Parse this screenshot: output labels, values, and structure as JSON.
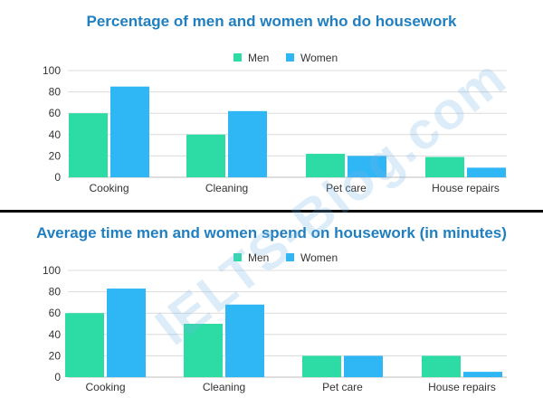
{
  "colors": {
    "men": "#2ddca4",
    "women": "#2fb6f5",
    "title": "#1f7fc0",
    "grid": "#dcdcdc"
  },
  "watermark": "IELTS-Blog.com",
  "chart_data": [
    {
      "type": "bar",
      "title": "Percentage of men and women who do housework",
      "categories": [
        "Cooking",
        "Cleaning",
        "Pet care",
        "House repairs"
      ],
      "series": [
        {
          "name": "Men",
          "values": [
            60,
            40,
            22,
            19
          ]
        },
        {
          "name": "Women",
          "values": [
            85,
            62,
            20,
            9
          ]
        }
      ],
      "ylim": [
        0,
        100
      ],
      "yticks": [
        0,
        20,
        40,
        60,
        80,
        100
      ],
      "grid": true,
      "legend": "top-center"
    },
    {
      "type": "bar",
      "title": "Average time men and women spend on housework (in minutes)",
      "categories": [
        "Cooking",
        "Cleaning",
        "Pet care",
        "House repairs"
      ],
      "series": [
        {
          "name": "Men",
          "values": [
            60,
            50,
            20,
            20
          ]
        },
        {
          "name": "Women",
          "values": [
            83,
            68,
            20,
            5
          ]
        }
      ],
      "ylim": [
        0,
        100
      ],
      "yticks": [
        0,
        20,
        40,
        60,
        80,
        100
      ],
      "grid": true,
      "legend": "top-center"
    }
  ]
}
